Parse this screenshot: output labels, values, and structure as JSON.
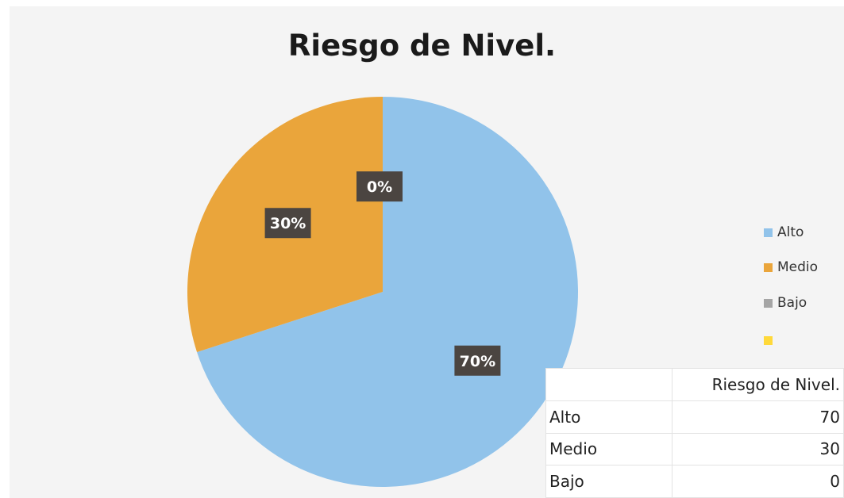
{
  "chart_data": {
    "type": "pie",
    "title": "Riesgo de Nivel.",
    "categories": [
      "Alto",
      "Medio",
      "Bajo",
      ""
    ],
    "values": [
      70,
      30,
      0,
      0
    ],
    "labels": [
      "70%",
      "30%",
      "0%"
    ],
    "colors": [
      "#91c3ea",
      "#eaa53b",
      "#a5a5a5",
      "#ffd93a"
    ],
    "legend_position": "right"
  },
  "legend": {
    "items": [
      {
        "label": "Alto",
        "color": "#91c3ea"
      },
      {
        "label": "Medio",
        "color": "#eaa53b"
      },
      {
        "label": "Bajo",
        "color": "#a5a5a5"
      },
      {
        "label": "",
        "color": "#ffd93a"
      }
    ]
  },
  "table": {
    "header": "Riesgo de Nivel.",
    "rows": [
      {
        "category": "Alto",
        "value": "70"
      },
      {
        "category": "Medio",
        "value": "30"
      },
      {
        "category": "Bajo",
        "value": "0"
      }
    ]
  }
}
